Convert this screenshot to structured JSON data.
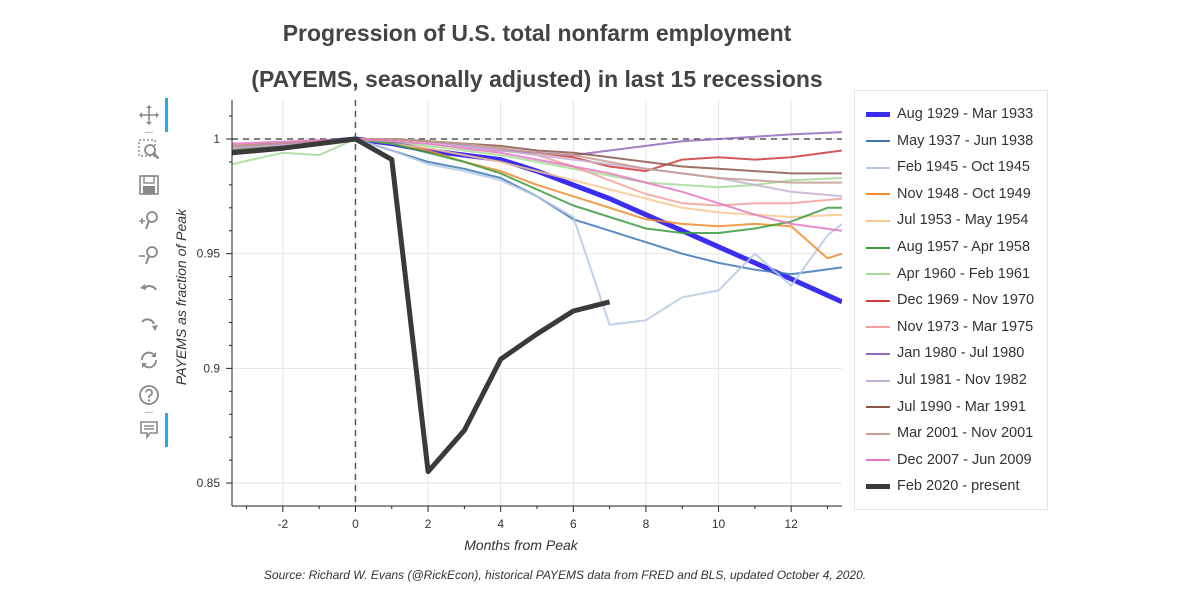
{
  "chart_data": {
    "type": "line",
    "title": [
      "Progression of U.S. total nonfarm employment",
      "(PAYEMS, seasonally adjusted) in last 15 recessions"
    ],
    "xlabel": "Months from Peak",
    "ylabel": "PAYEMS as fraction of Peak",
    "xlim": [
      -3.4,
      13.4
    ],
    "ylim": [
      0.84,
      1.017
    ],
    "x_ticks": [
      -2,
      0,
      2,
      4,
      6,
      8,
      10,
      12
    ],
    "x_tick_labels": [
      "-2",
      "0",
      "2",
      "4",
      "6",
      "8",
      "10",
      "12"
    ],
    "y_ticks": [
      0.85,
      0.9,
      0.95,
      1
    ],
    "y_tick_labels": [
      "0.85",
      "0.9",
      "0.95",
      "1"
    ],
    "reference_lines": {
      "horizontal_y": 1.0,
      "vertical_x": 0
    },
    "legend_position": "right",
    "series": [
      {
        "name": "Aug 1929 - Mar 1933",
        "color": "#3b2ef0",
        "width": 5,
        "x": [
          -3.4,
          0,
          1,
          2,
          3,
          4,
          5,
          6,
          7,
          8,
          9,
          10,
          11,
          12,
          13.4
        ],
        "values": [
          0.995,
          1.0,
          0.998,
          0.995,
          0.993,
          0.991,
          0.986,
          0.98,
          0.974,
          0.967,
          0.96,
          0.953,
          0.946,
          0.939,
          0.929
        ]
      },
      {
        "name": "May 1937 - Jun 1938",
        "color": "#3d78b8",
        "width": 2,
        "x": [
          -3.4,
          0,
          1,
          2,
          3,
          4,
          5,
          6,
          7,
          8,
          9,
          10,
          11,
          12,
          13.4
        ],
        "values": [
          0.995,
          1.0,
          0.995,
          0.99,
          0.987,
          0.983,
          0.975,
          0.965,
          0.96,
          0.955,
          0.95,
          0.946,
          0.943,
          0.941,
          0.944
        ]
      },
      {
        "name": "Feb 1945 - Oct 1945",
        "color": "#b5c9e4",
        "width": 2,
        "x": [
          -3.4,
          0,
          1,
          2,
          3,
          4,
          5,
          6,
          7,
          8,
          9,
          10,
          11,
          12,
          13,
          13.4
        ],
        "values": [
          0.995,
          1.0,
          0.995,
          0.989,
          0.986,
          0.982,
          0.975,
          0.966,
          0.919,
          0.921,
          0.931,
          0.934,
          0.95,
          0.936,
          0.958,
          0.963
        ]
      },
      {
        "name": "Nov 1948 - Oct 1949",
        "color": "#f08c2c",
        "width": 2,
        "x": [
          -3.4,
          0,
          1,
          2,
          3,
          4,
          5,
          6,
          7,
          8,
          9,
          10,
          11,
          12,
          13,
          13.4
        ],
        "values": [
          0.995,
          1.0,
          0.998,
          0.995,
          0.99,
          0.986,
          0.98,
          0.975,
          0.97,
          0.965,
          0.963,
          0.962,
          0.963,
          0.962,
          0.948,
          0.95
        ]
      },
      {
        "name": "Jul 1953 - May 1954",
        "color": "#f9c98d",
        "width": 2,
        "x": [
          -3.4,
          0,
          1,
          2,
          3,
          4,
          5,
          6,
          7,
          8,
          9,
          10,
          11,
          12,
          13.4
        ],
        "values": [
          0.996,
          1.0,
          0.998,
          0.996,
          0.993,
          0.99,
          0.986,
          0.982,
          0.978,
          0.974,
          0.97,
          0.968,
          0.967,
          0.966,
          0.967
        ]
      },
      {
        "name": "Aug 1957 - Apr 1958",
        "color": "#3b9c3f",
        "width": 2,
        "x": [
          -3.4,
          0,
          1,
          2,
          3,
          4,
          5,
          6,
          7,
          8,
          9,
          10,
          11,
          12,
          13,
          13.4
        ],
        "values": [
          0.995,
          1.0,
          0.998,
          0.994,
          0.99,
          0.985,
          0.978,
          0.971,
          0.966,
          0.961,
          0.959,
          0.959,
          0.961,
          0.964,
          0.97,
          0.97
        ]
      },
      {
        "name": "Apr 1960 - Feb 1961",
        "color": "#a6dc95",
        "width": 2,
        "x": [
          -3.4,
          -2,
          -1,
          0,
          1,
          2,
          3,
          4,
          5,
          6,
          7,
          8,
          9,
          10,
          11,
          12,
          13.4
        ],
        "values": [
          0.989,
          0.994,
          0.993,
          1.0,
          0.999,
          0.997,
          0.995,
          0.993,
          0.99,
          0.987,
          0.984,
          0.981,
          0.98,
          0.979,
          0.98,
          0.982,
          0.983
        ]
      },
      {
        "name": "Dec 1969 - Nov 1970",
        "color": "#d03a3a",
        "width": 2,
        "x": [
          -3.4,
          0,
          1,
          2,
          3,
          4,
          5,
          6,
          7,
          8,
          9,
          10,
          11,
          12,
          13.4
        ],
        "values": [
          0.996,
          1.0,
          1.0,
          0.999,
          0.997,
          0.995,
          0.994,
          0.992,
          0.988,
          0.986,
          0.991,
          0.992,
          0.991,
          0.992,
          0.995
        ]
      },
      {
        "name": "Nov 1973 - Mar 1975",
        "color": "#f5a09a",
        "width": 2,
        "x": [
          -3.4,
          0,
          1,
          2,
          3,
          4,
          5,
          6,
          7,
          8,
          9,
          10,
          11,
          12,
          13.4
        ],
        "values": [
          0.996,
          1.0,
          1.0,
          0.999,
          0.998,
          0.996,
          0.993,
          0.988,
          0.982,
          0.976,
          0.972,
          0.971,
          0.972,
          0.972,
          0.974
        ]
      },
      {
        "name": "Jan 1980 - Jul 1980",
        "color": "#9467bd",
        "width": 2,
        "x": [
          -3.4,
          0,
          1,
          2,
          3,
          4,
          5,
          6,
          7,
          8,
          9,
          10,
          11,
          12,
          13.4
        ],
        "values": [
          0.996,
          1.0,
          1.0,
          0.999,
          0.997,
          0.995,
          0.994,
          0.993,
          0.995,
          0.997,
          0.999,
          1.0,
          1.001,
          1.002,
          1.003
        ]
      },
      {
        "name": "Jul 1981 - Nov 1982",
        "color": "#c5b0d5",
        "width": 2,
        "x": [
          -3.4,
          0,
          1,
          2,
          3,
          4,
          5,
          6,
          7,
          8,
          9,
          10,
          11,
          12,
          13.4
        ],
        "values": [
          0.996,
          1.0,
          1.0,
          0.999,
          0.997,
          0.995,
          0.993,
          0.991,
          0.989,
          0.987,
          0.985,
          0.983,
          0.98,
          0.977,
          0.975
        ]
      },
      {
        "name": "Jul 1990 - Mar 1991",
        "color": "#8c564b",
        "width": 2,
        "x": [
          -3.4,
          0,
          1,
          2,
          3,
          4,
          5,
          6,
          7,
          8,
          9,
          10,
          11,
          12,
          13.4
        ],
        "values": [
          0.997,
          1.0,
          1.0,
          0.999,
          0.998,
          0.997,
          0.995,
          0.994,
          0.992,
          0.99,
          0.988,
          0.987,
          0.986,
          0.985,
          0.985
        ]
      },
      {
        "name": "Mar 2001 - Nov 2001",
        "color": "#c49c94",
        "width": 2,
        "x": [
          -3.4,
          0,
          1,
          2,
          3,
          4,
          5,
          6,
          7,
          8,
          9,
          10,
          11,
          12,
          13.4
        ],
        "values": [
          0.997,
          1.0,
          1.0,
          0.999,
          0.998,
          0.996,
          0.994,
          0.993,
          0.99,
          0.987,
          0.985,
          0.983,
          0.982,
          0.981,
          0.981
        ]
      },
      {
        "name": "Dec 2007 - Jun 2009",
        "color": "#e377c2",
        "width": 2,
        "x": [
          -3.4,
          0,
          1,
          2,
          3,
          4,
          5,
          6,
          7,
          8,
          9,
          10,
          11,
          12,
          13.4
        ],
        "values": [
          0.998,
          1.0,
          0.999,
          0.998,
          0.996,
          0.994,
          0.991,
          0.988,
          0.985,
          0.981,
          0.977,
          0.972,
          0.967,
          0.963,
          0.96
        ]
      },
      {
        "name": "Feb 2020 - present",
        "color": "#3a3a3a",
        "width": 5,
        "x": [
          -3.4,
          -2,
          -1,
          0,
          1,
          2,
          3,
          4,
          5,
          6,
          7
        ],
        "values": [
          0.994,
          0.996,
          0.998,
          1.0,
          0.991,
          0.855,
          0.873,
          0.904,
          0.915,
          0.925,
          0.929
        ]
      }
    ]
  },
  "source": "Source: Richard W. Evans (@RickEcon), historical PAYEMS data from FRED and BLS, updated October 4, 2020.",
  "toolbar": [
    {
      "name": "pan-tool-icon",
      "active": true
    },
    {
      "name": "box-zoom-tool-icon",
      "active": false
    },
    {
      "name": "save-tool-icon",
      "active": false
    },
    {
      "name": "zoom-in-tool-icon",
      "active": false
    },
    {
      "name": "zoom-out-tool-icon",
      "active": false
    },
    {
      "name": "undo-tool-icon",
      "active": false
    },
    {
      "name": "redo-tool-icon",
      "active": false
    },
    {
      "name": "reset-tool-icon",
      "active": false
    },
    {
      "name": "help-tool-icon",
      "active": false
    },
    {
      "name": "hover-tool-icon",
      "active": true
    }
  ]
}
